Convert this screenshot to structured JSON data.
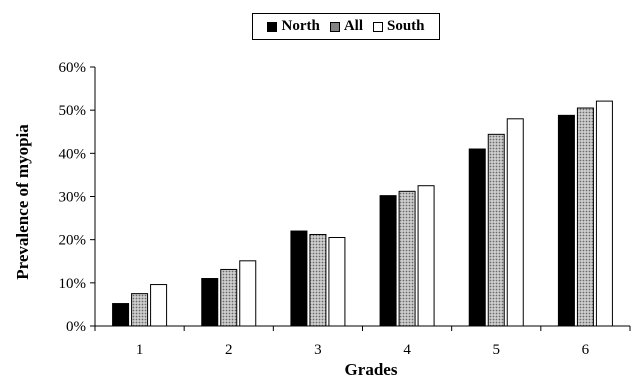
{
  "chart_data": {
    "type": "bar",
    "title": "",
    "xlabel": "Grades",
    "ylabel": "Prevalence of myopia",
    "categories": [
      "1",
      "2",
      "3",
      "4",
      "5",
      "6"
    ],
    "series": [
      {
        "name": "North",
        "values": [
          5.2,
          11.0,
          22.0,
          30.2,
          41.0,
          48.8
        ],
        "color": "#000000",
        "pattern": "solid"
      },
      {
        "name": "All",
        "values": [
          7.5,
          13.1,
          21.2,
          31.2,
          44.4,
          50.5
        ],
        "color": "#b3b3b3",
        "pattern": "dotted"
      },
      {
        "name": "South",
        "values": [
          9.6,
          15.1,
          20.5,
          32.5,
          48.0,
          52.1
        ],
        "color": "#ffffff",
        "pattern": "hollow"
      }
    ],
    "ylim": [
      0,
      60
    ],
    "yticks": [
      0,
      10,
      20,
      30,
      40,
      50,
      60
    ],
    "ytick_labels": [
      "0%",
      "10%",
      "20%",
      "30%",
      "40%",
      "50%",
      "60%"
    ],
    "legend_position": "top-center",
    "grid": false
  }
}
